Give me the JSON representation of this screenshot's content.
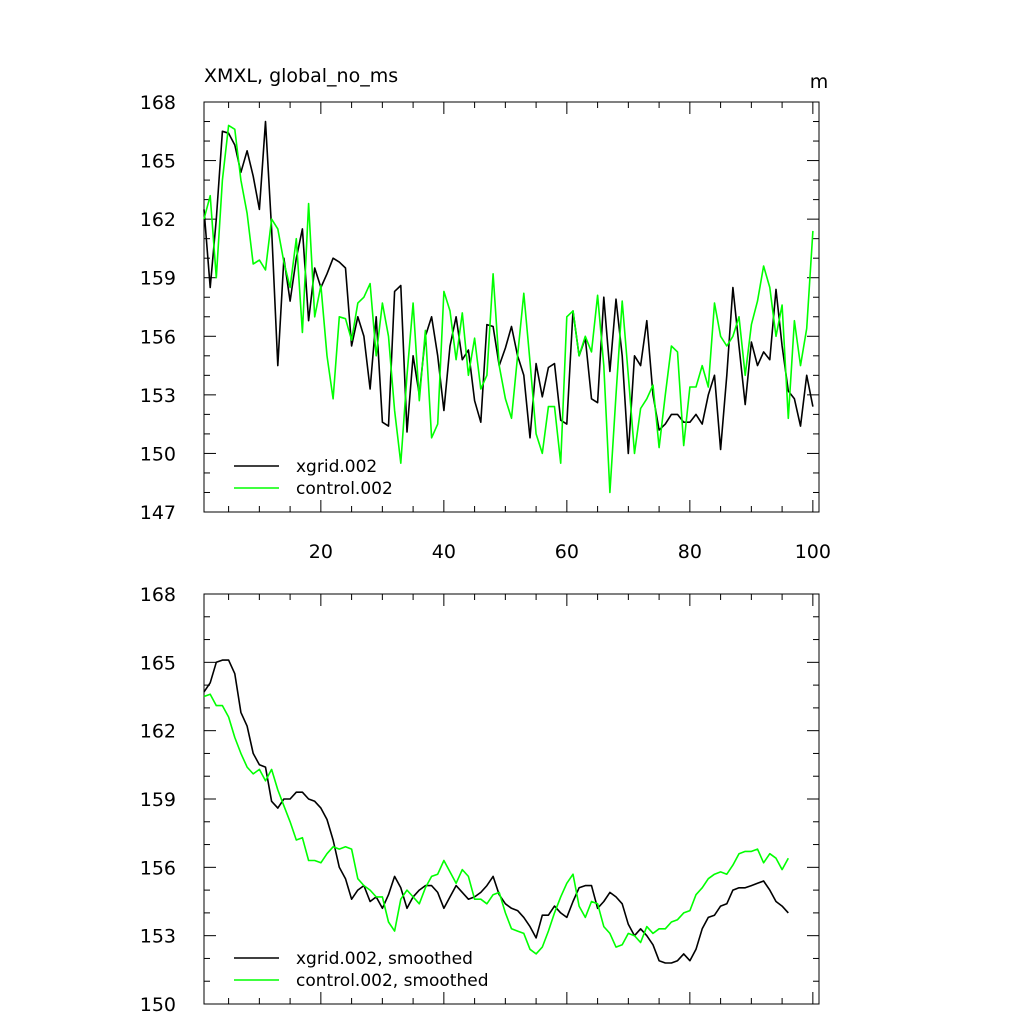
{
  "chart_data": [
    {
      "type": "line",
      "title": "XMXL, global_no_ms",
      "units": "m",
      "xlim": [
        1,
        101
      ],
      "ylim": [
        147,
        168
      ],
      "x_ticks": [
        20,
        40,
        60,
        80,
        100
      ],
      "y_ticks": [
        147,
        150,
        153,
        156,
        159,
        162,
        165,
        168
      ],
      "x_tick_labels": [
        "20",
        "40",
        "60",
        "80",
        "100"
      ],
      "y_tick_labels": [
        "147",
        "150",
        "153",
        "156",
        "159",
        "162",
        "165",
        "168"
      ],
      "legend_position": "bottom-left",
      "series": [
        {
          "name": "xgrid.002",
          "color": "#000000",
          "values": [
            162.5,
            158.5,
            162.0,
            166.5,
            166.4,
            165.8,
            164.4,
            165.5,
            164.2,
            162.5,
            167.0,
            161.5,
            154.5,
            160.0,
            157.8,
            160.0,
            161.5,
            156.8,
            159.5,
            158.5,
            159.2,
            160.0,
            159.8,
            159.5,
            155.5,
            157.0,
            156.0,
            153.3,
            157.0,
            151.6,
            151.4,
            158.3,
            158.6,
            151.1,
            155.0,
            153.0,
            156.0,
            157.0,
            155.0,
            152.2,
            155.5,
            157.0,
            154.8,
            155.3,
            152.7,
            151.6,
            156.6,
            156.5,
            154.5,
            155.4,
            156.5,
            155.0,
            154.0,
            150.8,
            154.6,
            152.9,
            154.4,
            154.6,
            151.7,
            151.5,
            157.3,
            155.0,
            155.9,
            152.8,
            152.6,
            158.0,
            154.2,
            157.9,
            155.0,
            150.0,
            155.0,
            154.5,
            156.8,
            153.0,
            151.2,
            151.5,
            152.0,
            152.0,
            151.6,
            151.6,
            152.0,
            151.5,
            153.0,
            154.0,
            150.2,
            154.0,
            158.5,
            155.5,
            152.5,
            155.7,
            154.5,
            155.2,
            154.8,
            158.4,
            155.5,
            153.2,
            152.8,
            151.4,
            154.0,
            152.4
          ]
        },
        {
          "name": "control.002",
          "color": "#00ff00",
          "values": [
            162.0,
            163.2,
            159.0,
            164.0,
            166.8,
            166.6,
            164.0,
            162.3,
            159.7,
            159.9,
            159.4,
            162.0,
            161.5,
            159.8,
            158.5,
            161.0,
            156.2,
            162.8,
            157.0,
            158.6,
            155.0,
            152.8,
            157.0,
            156.9,
            155.8,
            157.7,
            158.0,
            158.7,
            155.0,
            157.7,
            156.0,
            152.2,
            149.5,
            154.0,
            157.7,
            152.7,
            156.3,
            150.8,
            151.5,
            158.3,
            157.3,
            154.8,
            157.2,
            154.0,
            155.9,
            153.3,
            154.0,
            159.2,
            154.5,
            152.8,
            151.8,
            155.0,
            158.2,
            154.7,
            151.0,
            150.0,
            152.4,
            152.4,
            149.5,
            157.0,
            157.3,
            155.0,
            156.0,
            155.2,
            158.1,
            154.5,
            148.0,
            153.0,
            157.8,
            154.0,
            150.0,
            152.3,
            152.8,
            153.5,
            150.3,
            153.0,
            155.5,
            155.2,
            150.4,
            153.4,
            153.4,
            154.5,
            153.4,
            157.7,
            156.0,
            155.5,
            156.0,
            157.0,
            154.0,
            156.6,
            157.8,
            159.6,
            158.5,
            156.0,
            157.6,
            151.8,
            156.8,
            154.5,
            156.4,
            161.4
          ]
        }
      ]
    },
    {
      "type": "line",
      "title": "",
      "xlim": [
        1,
        101
      ],
      "ylim": [
        150,
        168
      ],
      "x_ticks": [
        20,
        40,
        60,
        80,
        100
      ],
      "y_ticks": [
        150,
        153,
        156,
        159,
        162,
        165,
        168
      ],
      "y_tick_labels": [
        "150",
        "153",
        "156",
        "159",
        "162",
        "165",
        "168"
      ],
      "legend_position": "bottom-left",
      "series": [
        {
          "name": "xgrid.002, smoothed",
          "color": "#000000",
          "values": [
            163.7,
            164.1,
            165.0,
            165.1,
            165.1,
            164.5,
            162.8,
            162.2,
            161.0,
            160.5,
            160.4,
            158.9,
            158.6,
            159.0,
            159.0,
            159.3,
            159.3,
            159.0,
            158.9,
            158.6,
            158.1,
            157.2,
            156.0,
            155.5,
            154.6,
            155.0,
            155.2,
            154.5,
            154.7,
            154.2,
            154.8,
            155.6,
            155.1,
            154.2,
            154.7,
            155.0,
            155.2,
            155.2,
            154.9,
            154.2,
            154.7,
            155.2,
            154.9,
            154.6,
            154.7,
            154.9,
            155.2,
            155.6,
            154.8,
            154.4,
            154.2,
            154.1,
            153.8,
            153.4,
            152.9,
            153.9,
            153.9,
            154.3,
            154.0,
            153.8,
            154.5,
            155.1,
            155.2,
            155.2,
            154.2,
            154.5,
            154.9,
            154.7,
            154.4,
            153.5,
            153.0,
            153.3,
            153.0,
            152.6,
            151.9,
            151.8,
            151.8,
            151.9,
            152.2,
            151.9,
            152.4,
            153.3,
            153.8,
            153.9,
            154.3,
            154.4,
            155.0,
            155.1,
            155.1,
            155.2,
            155.3,
            155.4,
            155.0,
            154.5,
            154.3,
            154.0
          ]
        },
        {
          "name": "control.002, smoothed",
          "color": "#00ff00",
          "values": [
            163.5,
            163.6,
            163.1,
            163.1,
            162.6,
            161.7,
            161.0,
            160.4,
            160.1,
            160.3,
            159.8,
            160.3,
            159.4,
            158.7,
            158.0,
            157.2,
            157.3,
            156.3,
            156.3,
            156.2,
            156.6,
            156.9,
            156.8,
            156.9,
            156.8,
            155.5,
            155.2,
            155.0,
            154.7,
            154.7,
            153.6,
            153.2,
            154.6,
            155.0,
            154.7,
            154.4,
            155.1,
            155.6,
            155.7,
            156.3,
            155.8,
            155.3,
            155.9,
            155.6,
            154.6,
            154.6,
            154.4,
            154.8,
            154.9,
            154.0,
            153.3,
            153.2,
            153.1,
            152.4,
            152.2,
            152.5,
            153.2,
            154.0,
            154.7,
            155.3,
            155.7,
            154.3,
            153.8,
            154.5,
            154.4,
            153.4,
            153.1,
            152.5,
            152.6,
            153.1,
            153.0,
            152.7,
            153.4,
            153.1,
            153.3,
            153.3,
            153.6,
            153.7,
            154.0,
            154.1,
            154.8,
            155.1,
            155.5,
            155.7,
            155.8,
            155.7,
            156.1,
            156.6,
            156.7,
            156.7,
            156.8,
            156.2,
            156.6,
            156.4,
            155.9,
            156.4
          ]
        }
      ]
    }
  ]
}
